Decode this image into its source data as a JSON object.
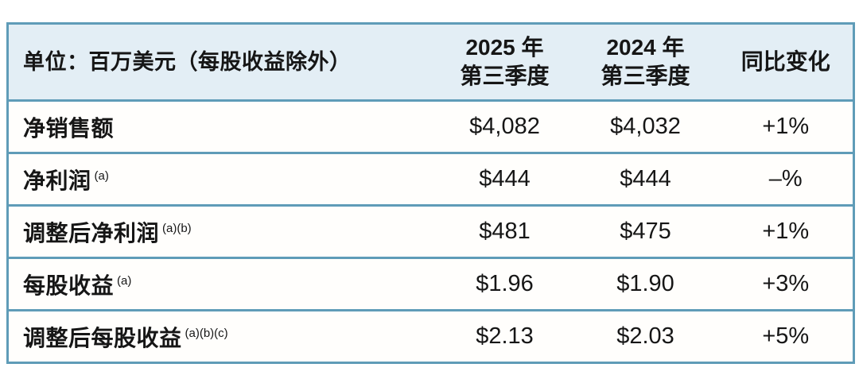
{
  "chart_data": {
    "type": "table",
    "title": "",
    "header": {
      "unit_label": "单位：百万美元（每股收益除外）",
      "col_2025_line1": "2025 年",
      "col_2025_line2": "第三季度",
      "col_2024_line1": "2024 年",
      "col_2024_line2": "第三季度",
      "col_change": "同比变化"
    },
    "columns": [
      "单位：百万美元（每股收益除外）",
      "2025 年 第三季度",
      "2024 年 第三季度",
      "同比变化"
    ],
    "rows": [
      {
        "label": "净销售额",
        "footnote": "",
        "q3_2025": "$4,082",
        "q3_2024": "$4,032",
        "yoy_change": "+1%"
      },
      {
        "label": "净利润",
        "footnote": "(a)",
        "q3_2025": "$444",
        "q3_2024": "$444",
        "yoy_change": "–%"
      },
      {
        "label": "调整后净利润",
        "footnote": "(a)(b)",
        "q3_2025": "$481",
        "q3_2024": "$475",
        "yoy_change": "+1%"
      },
      {
        "label": "每股收益",
        "footnote": "(a)",
        "q3_2025": "$1.96",
        "q3_2024": "$1.90",
        "yoy_change": "+3%"
      },
      {
        "label": "调整后每股收益",
        "footnote": "(a)(b)(c)",
        "q3_2025": "$2.13",
        "q3_2024": "$2.03",
        "yoy_change": "+5%"
      }
    ],
    "colors": {
      "header_bg": "#e3eef5",
      "border": "#5f9cb8",
      "text": "#161616",
      "row_bg": "#fffefc"
    }
  }
}
